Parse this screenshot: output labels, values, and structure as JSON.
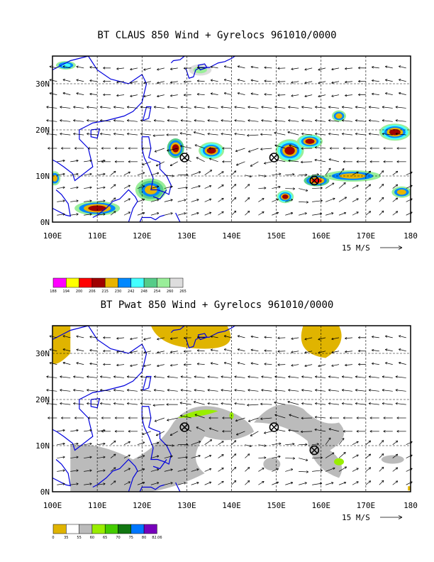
{
  "panels": [
    {
      "title": "BT CLAUS 850 Wind + Gyrelocs 961010/0000",
      "field": "claus",
      "y_ticks": [
        "30N",
        "20N",
        "10N",
        "0N"
      ],
      "x_ticks": [
        "100E",
        "110E",
        "120E",
        "130E",
        "140E",
        "150E",
        "160E",
        "170E",
        "180"
      ],
      "ref_vector_label": "15 M/S",
      "colorbar": {
        "colors": [
          "#ff00ff",
          "#ffff00",
          "#ff0000",
          "#a00000",
          "#e8b400",
          "#0088ff",
          "#44ffff",
          "#55cc88",
          "#99ee99",
          "#dddddd"
        ],
        "labels": [
          "188",
          "194",
          "200",
          "206",
          "215",
          "230",
          "242",
          "248",
          "254",
          "260",
          "265"
        ]
      }
    },
    {
      "title": "BT Pwat 850 Wind + Gyrelocs 961010/0000",
      "field": "pwat",
      "y_ticks": [
        "30N",
        "20N",
        "10N",
        "0N"
      ],
      "x_ticks": [
        "100E",
        "110E",
        "120E",
        "130E",
        "140E",
        "150E",
        "160E",
        "170E",
        "180"
      ],
      "ref_vector_label": "15 M/S",
      "colorbar": {
        "colors": [
          "#e0b400",
          "#ffffff",
          "#bbbbbb",
          "#99ee00",
          "#44cc00",
          "#117711",
          "#0077ff",
          "#7700bb"
        ],
        "labels": [
          "0",
          "35",
          "55",
          "60",
          "65",
          "70",
          "75",
          "80",
          "82.06"
        ]
      }
    }
  ],
  "gyre_locations": [
    {
      "lon": 129.5,
      "lat": 14
    },
    {
      "lon": 149.5,
      "lat": 14
    },
    {
      "lon": 158.5,
      "lat": 9
    }
  ]
}
